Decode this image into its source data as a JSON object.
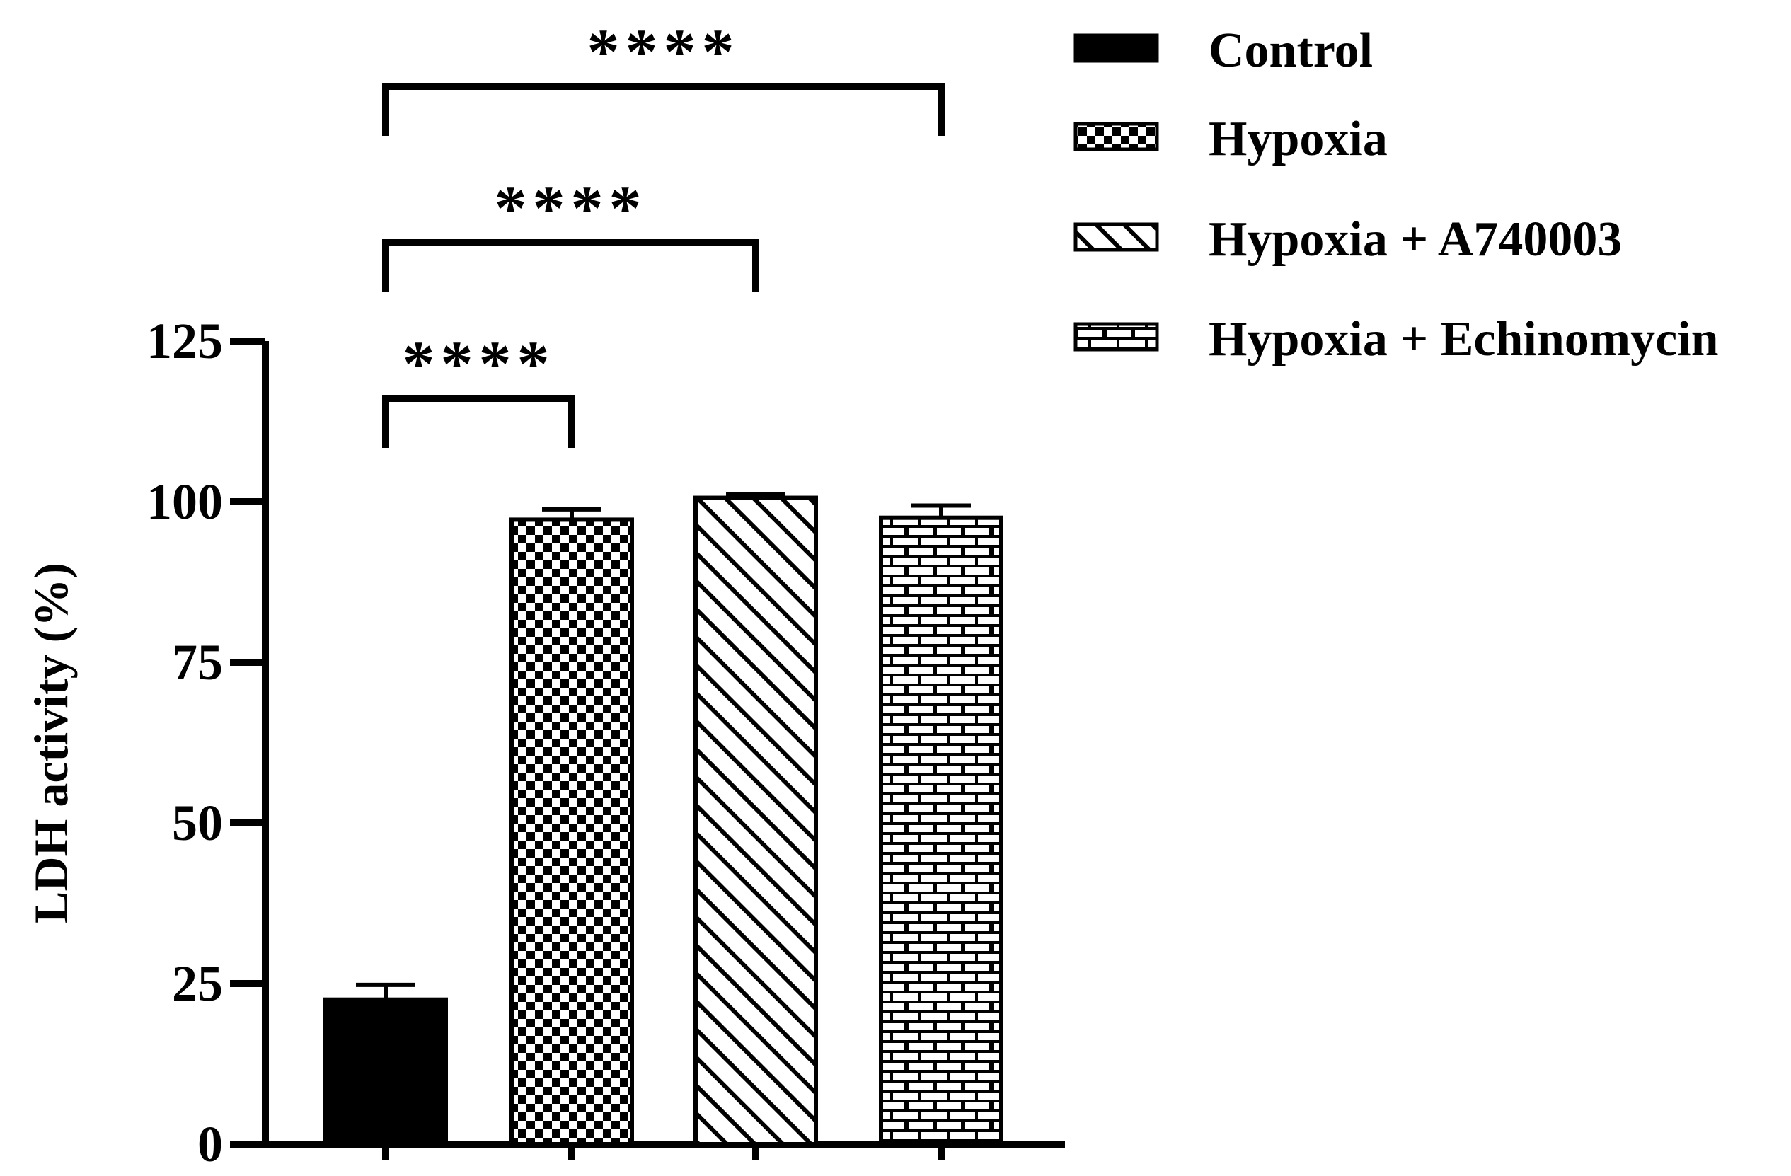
{
  "chart_data": {
    "type": "bar",
    "title": "",
    "xlabel": "",
    "ylabel": "LDH activity (%)",
    "ylim": [
      0,
      125
    ],
    "yticks": [
      0,
      25,
      50,
      75,
      100,
      125
    ],
    "grid": false,
    "legend_position": "top-right",
    "categories": [
      "Control",
      "Hypoxia",
      "Hypoxia + A740003",
      "Hypoxia + Echinomycin"
    ],
    "series": [
      {
        "name": "Control",
        "value": 22.5,
        "error": 2.3,
        "pattern": "solid"
      },
      {
        "name": "Hypoxia",
        "value": 97.2,
        "error": 1.6,
        "pattern": "checkerboard"
      },
      {
        "name": "Hypoxia + A740003",
        "value": 100.6,
        "error": 0.6,
        "pattern": "diagonal"
      },
      {
        "name": "Hypoxia + Echinomycin",
        "value": 97.5,
        "error": 1.9,
        "pattern": "brick"
      }
    ],
    "annotations": [
      {
        "from": "Control",
        "to": "Hypoxia",
        "label": "****",
        "level": 1
      },
      {
        "from": "Control",
        "to": "Hypoxia + A740003",
        "label": "****",
        "level": 2
      },
      {
        "from": "Control",
        "to": "Hypoxia + Echinomycin",
        "label": "****",
        "level": 3
      }
    ]
  }
}
